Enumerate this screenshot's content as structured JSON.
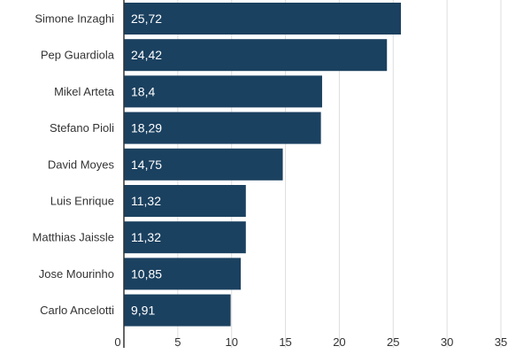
{
  "chart_data": {
    "type": "bar",
    "orientation": "horizontal",
    "categories": [
      "Simone Inzaghi",
      "Pep Guardiola",
      "Mikel Arteta",
      "Stefano Pioli",
      "David Moyes",
      "Luis Enrique",
      "Matthias Jaissle",
      "Jose Mourinho",
      "Carlo Ancelotti"
    ],
    "values": [
      25.72,
      24.42,
      18.4,
      18.29,
      14.75,
      11.32,
      11.32,
      10.85,
      9.91
    ],
    "value_labels": [
      "25,72",
      "24,42",
      "18,4",
      "18,29",
      "14,75",
      "11,32",
      "11,32",
      "10,85",
      "9,91"
    ],
    "x_ticks": [
      "0",
      "5",
      "10",
      "15",
      "20",
      "25",
      "30",
      "35"
    ],
    "xlim": [
      0,
      35
    ],
    "grid": "vertical",
    "colors": {
      "bar": "#1b4160",
      "grid": "#dedede",
      "axis": "#333333"
    }
  }
}
